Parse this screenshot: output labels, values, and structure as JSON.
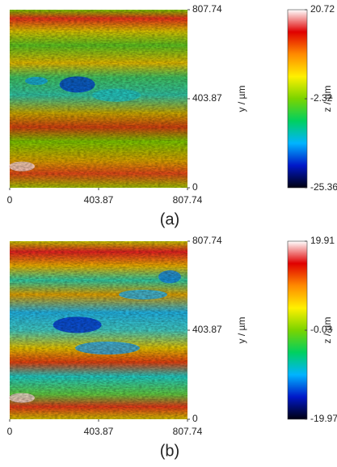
{
  "chart_data": [
    {
      "type": "heatmap",
      "label": "(a)",
      "ylabel": "y / µm",
      "xlim": [
        0,
        807.74
      ],
      "xticks": [
        0,
        403.87,
        807.74
      ],
      "ylim": [
        0,
        807.74
      ],
      "yticks": [
        0,
        403.87,
        807.74
      ],
      "colorbar": {
        "label": "z / µm",
        "lim": [
          -25.36,
          20.72
        ],
        "ticks": [
          -25.36,
          -2.32,
          20.72
        ],
        "colors": [
          "#000010",
          "#0018c8",
          "#00b4ff",
          "#00d060",
          "#7ad400",
          "#fff000",
          "#ff8a00",
          "#e00000",
          "#ffffff"
        ]
      }
    },
    {
      "type": "heatmap",
      "label": "(b)",
      "ylabel": "y / µm",
      "xlim": [
        0,
        807.74
      ],
      "xticks": [
        0,
        403.87,
        807.74
      ],
      "ylim": [
        0,
        807.74
      ],
      "yticks": [
        0,
        403.87,
        807.74
      ],
      "colorbar": {
        "label": "z / µm",
        "lim": [
          -19.97,
          19.91
        ],
        "ticks": [
          -19.97,
          -0.03,
          19.91
        ],
        "colors": [
          "#000010",
          "#0018c8",
          "#00b4ff",
          "#00d060",
          "#7ad400",
          "#fff000",
          "#ff8a00",
          "#e00000",
          "#ffffff"
        ]
      }
    }
  ]
}
